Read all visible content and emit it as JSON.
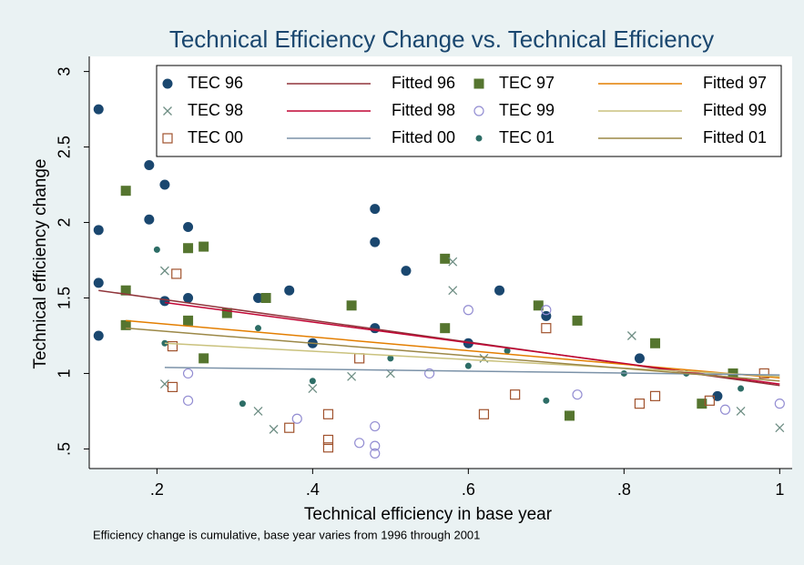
{
  "chart_data": {
    "type": "scatter",
    "title": "Technical Efficiency Change vs. Technical Efficiency",
    "x_label": "Technical efficiency in base year",
    "y_label": "Technical efficiency change",
    "note": "Efficiency change is cumulative, base year varies from 1996 through 2001",
    "xlim": [
      0.113,
      1.016
    ],
    "ylim": [
      0.37,
      3.1
    ],
    "xticks": [
      {
        "value": 0.2,
        "label": ".2"
      },
      {
        "value": 0.4,
        "label": ".4"
      },
      {
        "value": 0.6,
        "label": ".6"
      },
      {
        "value": 0.8,
        "label": ".8"
      },
      1
    ],
    "yticks": [
      {
        "value": 0.5,
        "label": ".5"
      },
      1,
      1.5,
      2,
      2.5,
      3
    ],
    "legend": "top",
    "series": [
      {
        "name": "TEC 96",
        "color": "#1a476f",
        "marker": "circle",
        "x": [
          0.125,
          0.125,
          0.125,
          0.125,
          0.19,
          0.19,
          0.21,
          0.21,
          0.24,
          0.24,
          0.33,
          0.37,
          0.48,
          0.48,
          0.48,
          0.52,
          0.64,
          0.7,
          0.82,
          0.92,
          0.4,
          0.6
        ],
        "y": [
          2.75,
          1.95,
          1.6,
          1.25,
          2.38,
          2.02,
          2.25,
          1.48,
          1.97,
          1.5,
          1.5,
          1.55,
          2.09,
          1.87,
          1.3,
          1.68,
          1.55,
          1.38,
          1.1,
          0.85,
          1.2,
          1.2
        ]
      },
      {
        "name": "Fitted 96",
        "color": "#90353b",
        "marker": "line",
        "x": [
          0.125,
          1
        ],
        "y": [
          1.55,
          0.92
        ]
      },
      {
        "name": "TEC 97",
        "color": "#55752f",
        "marker": "square",
        "x": [
          0.16,
          0.16,
          0.16,
          0.24,
          0.24,
          0.26,
          0.26,
          0.29,
          0.34,
          0.45,
          0.57,
          0.57,
          0.69,
          0.73,
          0.74,
          0.84,
          0.9,
          0.94
        ],
        "y": [
          2.21,
          1.55,
          1.32,
          1.83,
          1.35,
          1.84,
          1.1,
          1.4,
          1.5,
          1.45,
          1.76,
          1.3,
          1.45,
          0.72,
          1.35,
          1.2,
          0.8,
          1.0
        ]
      },
      {
        "name": "Fitted 97",
        "color": "#e37e00",
        "marker": "line",
        "x": [
          0.16,
          1
        ],
        "y": [
          1.35,
          0.97
        ]
      },
      {
        "name": "TEC 98",
        "color": "#6e8e84",
        "marker": "x",
        "x": [
          0.21,
          0.21,
          0.33,
          0.35,
          0.4,
          0.58,
          0.58,
          0.62,
          0.81,
          0.95,
          1,
          0.5,
          0.45
        ],
        "y": [
          1.68,
          0.93,
          0.75,
          0.63,
          0.9,
          1.74,
          1.55,
          1.1,
          1.25,
          0.75,
          0.64,
          1.0,
          0.98
        ]
      },
      {
        "name": "Fitted 98",
        "color": "#c10534",
        "marker": "line",
        "x": [
          0.21,
          1
        ],
        "y": [
          1.47,
          0.93
        ]
      },
      {
        "name": "TEC 99",
        "color": "#938dd2",
        "marker": "hollow-circle",
        "x": [
          0.24,
          0.24,
          0.38,
          0.48,
          0.48,
          0.48,
          0.46,
          0.6,
          0.7,
          0.74,
          0.93,
          1,
          0.55
        ],
        "y": [
          0.82,
          1.0,
          0.7,
          0.47,
          0.52,
          0.65,
          0.54,
          1.42,
          1.42,
          0.86,
          0.76,
          0.8,
          1.0
        ]
      },
      {
        "name": "Fitted 99",
        "color": "#cac27e",
        "marker": "line",
        "x": [
          0.21,
          1
        ],
        "y": [
          1.2,
          0.98
        ]
      },
      {
        "name": "TEC 00",
        "color": "#a0522d",
        "marker": "hollow-square",
        "x": [
          0.225,
          0.22,
          0.22,
          0.37,
          0.42,
          0.42,
          0.42,
          0.46,
          0.62,
          0.66,
          0.7,
          0.82,
          0.84,
          0.91,
          0.98
        ],
        "y": [
          1.66,
          0.91,
          1.18,
          0.64,
          0.56,
          0.51,
          0.73,
          1.1,
          0.73,
          0.86,
          1.3,
          0.8,
          0.85,
          0.82,
          1.0
        ]
      },
      {
        "name": "Fitted 00",
        "color": "#7b92a8",
        "marker": "line",
        "x": [
          0.21,
          1
        ],
        "y": [
          1.04,
          0.99
        ]
      },
      {
        "name": "TEC 01",
        "color": "#2d6d66",
        "marker": "dot",
        "x": [
          0.2,
          0.21,
          0.31,
          0.33,
          0.4,
          0.5,
          0.6,
          0.7,
          0.8,
          0.88,
          0.95,
          0.65
        ],
        "y": [
          1.82,
          1.2,
          0.8,
          1.3,
          0.95,
          1.1,
          1.05,
          0.82,
          1.0,
          1.0,
          0.9,
          1.15
        ]
      },
      {
        "name": "Fitted 01",
        "color": "#9c8847",
        "marker": "line",
        "x": [
          0.16,
          1
        ],
        "y": [
          1.3,
          0.95
        ]
      }
    ]
  }
}
